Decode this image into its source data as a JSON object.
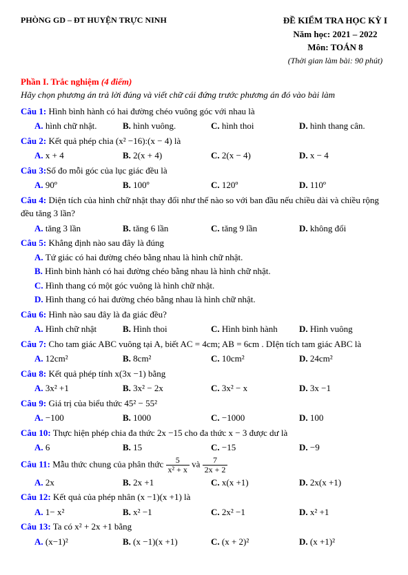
{
  "header": {
    "left": "PHÒNG GD – ĐT HUYỆN TRỰC NINH",
    "title": "ĐỀ KIỂM TRA HỌC KỲ I",
    "year": "Năm học: 2021 – 2022",
    "subject": "Môn: TOÁN 8",
    "time": "(Thời gian làm bài: 90 phút)"
  },
  "section1": {
    "title": "Phần I. Trắc nghiệm ",
    "points": "(4 điểm)",
    "instruction": "Hãy chọn phương án trả lời đúng và viết chữ cái đứng trước phương án đó vào bài làm"
  },
  "q1": {
    "label": "Câu 1:",
    "text": " Hình bình hành có hai đường chéo vuông góc với nhau là",
    "a": "hình chữ nhật.",
    "b": "hình vuông.",
    "c": "hình thoi",
    "d": "hình thang cân."
  },
  "q2": {
    "label": "Câu 2:",
    "text": " Kết quả phép chia (x² −16):(x − 4) là",
    "a": "x + 4",
    "b": "2(x + 4)",
    "c": "2(x − 4)",
    "d": "x − 4"
  },
  "q3": {
    "label": "Câu 3:",
    "text": "Số đo mỗi góc của lục giác đều là",
    "a": "90º",
    "b": "100º",
    "c": "120º",
    "d": "110º"
  },
  "q4": {
    "label": "Câu 4:",
    "text": " Diện tích của hình chữ nhật thay đổi như thế nào so với ban đầu nếu chiều dài và chiều rộng đều tăng 3 lần?",
    "a": "tăng 3 lần",
    "b": "tăng 6 lần",
    "c": "tăng 9 lần",
    "d": "không đổi"
  },
  "q5": {
    "label": "Câu 5:",
    "text": " Khẳng định nào sau đây là đúng",
    "s_a": "Tứ giác có hai đường chéo bằng nhau là hình chữ nhật.",
    "s_b": "Hình bình hành có hai đường chéo bằng nhau là hình chữ nhật.",
    "s_c": "Hình thang có một góc vuông là hình chữ nhật.",
    "s_d": "Hình thang có hai đường chéo bằng nhau là hình chữ nhật."
  },
  "q6": {
    "label": "Câu 6:",
    "text": " Hình nào sau đây là đa giác đều?",
    "a": "Hình chữ nhật",
    "b": "Hình thoi",
    "c": "Hình bình hành",
    "d": "Hình vuông"
  },
  "q7": {
    "label": "Câu 7:",
    "text": " Cho tam giác ABC vuông tại A, biết  AC = 4cm;  AB = 6cm . DIện tích tam giác ABC là",
    "a": "12cm²",
    "b": "8cm²",
    "c": "10cm²",
    "d": "24cm²"
  },
  "q8": {
    "label": "Câu 8:",
    "text": " Kết quả phép tính x(3x −1) bằng",
    "a": "3x² +1",
    "b": "3x² − 2x",
    "c": "3x² − x",
    "d": "3x −1"
  },
  "q9": {
    "label": "Câu 9:",
    "text": " Giá trị của biểu thức 45² − 55²",
    "a": "−100",
    "b": "1000",
    "c": "−1000",
    "d": "100"
  },
  "q10": {
    "label": "Câu 10:",
    "text": " Thực hiện phép chia đa thức 2x −15 cho đa thức x − 3 được dư là",
    "a": "6",
    "b": "15",
    "c": "−15",
    "d": "−9"
  },
  "q11": {
    "label": "Câu 11:",
    "text_before": " Mẫu thức chung của phân thức ",
    "text_mid": " và ",
    "frac1_num": "5",
    "frac1_den": "x² + x",
    "frac2_num": "7",
    "frac2_den": "2x + 2",
    "a": "2x",
    "b": "2x +1",
    "c": "x(x +1)",
    "d": "2x(x +1)"
  },
  "q12": {
    "label": "Câu 12:",
    "text": " Kết quả của phép nhân  (x −1)(x +1) là",
    "a": "1− x²",
    "b": "x² −1",
    "c": "2x² −1",
    "d": "x² +1"
  },
  "q13": {
    "label": "Câu 13:",
    "text": " Ta có  x² + 2x +1 bằng",
    "a": "(x−1)²",
    "b": "(x −1)(x +1)",
    "c": "(x + 2)²",
    "d": "(x +1)²"
  }
}
